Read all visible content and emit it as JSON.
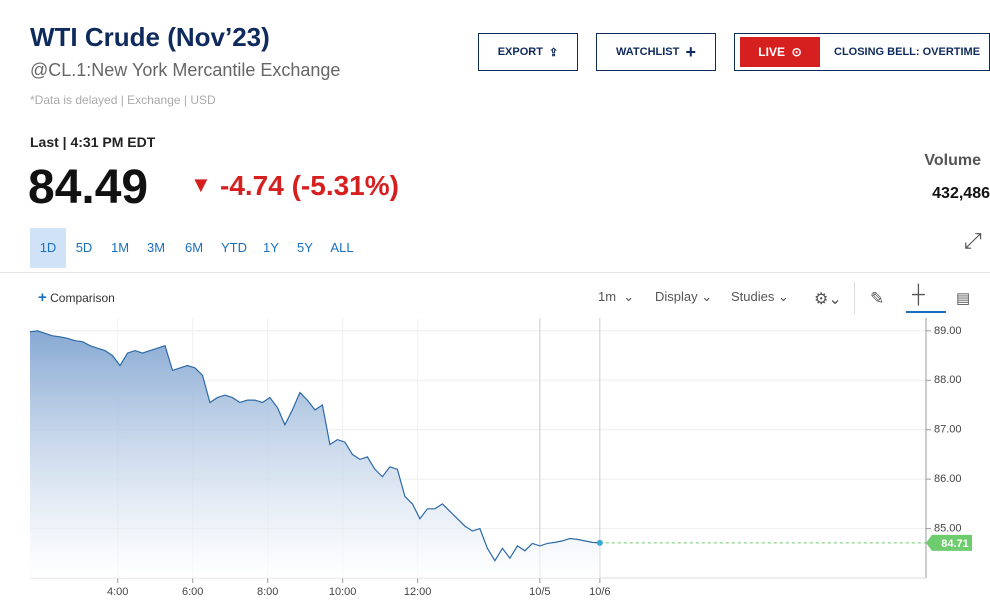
{
  "header": {
    "title": "WTI Crude (Nov’23)",
    "subtitle": "@CL.1:New York Mercantile Exchange",
    "note": "*Data is delayed | Exchange | USD"
  },
  "buttons": {
    "export": "EXPORT",
    "watchlist": "WATCHLIST",
    "live": "LIVE",
    "show": "CLOSING BELL: OVERTIME"
  },
  "quote": {
    "last_label": "Last | 4:31 PM EDT",
    "price": "84.49",
    "change": "-4.74 (-5.31%)",
    "volume_label": "Volume",
    "volume": "432,486"
  },
  "ranges": [
    "1D",
    "5D",
    "1M",
    "3M",
    "6M",
    "YTD",
    "1Y",
    "5Y",
    "ALL"
  ],
  "toolbar": {
    "comparison": "Comparison",
    "interval": "1m",
    "display": "Display",
    "studies": "Studies"
  },
  "chart_data": {
    "type": "area",
    "color": "#2d6aa6",
    "grid": true,
    "x": [
      0,
      1,
      2,
      3,
      4,
      5,
      6,
      7,
      8,
      9,
      10,
      11,
      12,
      13,
      14,
      15,
      16,
      17,
      18,
      19,
      20,
      21,
      22,
      23,
      24,
      25,
      26,
      27,
      28,
      29,
      30,
      31,
      32,
      33,
      34,
      35,
      36,
      37,
      38,
      39,
      40,
      41,
      42,
      43,
      44,
      45,
      46,
      47,
      48,
      49,
      50,
      51,
      52,
      53,
      54,
      55,
      56,
      57,
      58,
      59,
      60,
      61,
      62,
      63,
      64,
      65,
      66,
      67,
      68,
      69,
      70,
      71,
      72,
      73,
      74,
      75,
      76
    ],
    "values": [
      88.98,
      89.0,
      88.95,
      88.9,
      88.88,
      88.85,
      88.8,
      88.78,
      88.7,
      88.65,
      88.6,
      88.5,
      88.3,
      88.55,
      88.6,
      88.55,
      88.6,
      88.65,
      88.7,
      88.2,
      88.25,
      88.3,
      88.25,
      88.1,
      87.55,
      87.65,
      87.7,
      87.65,
      87.55,
      87.6,
      87.6,
      87.55,
      87.65,
      87.45,
      87.1,
      87.4,
      87.75,
      87.6,
      87.4,
      87.5,
      86.7,
      86.8,
      86.75,
      86.5,
      86.4,
      86.45,
      86.2,
      86.05,
      86.25,
      86.2,
      85.65,
      85.5,
      85.2,
      85.4,
      85.4,
      85.5,
      85.35,
      85.2,
      85.05,
      84.95,
      85.0,
      84.6,
      84.35,
      84.6,
      84.4,
      84.65,
      84.55,
      84.7,
      84.65,
      84.7,
      84.72,
      84.75,
      84.8,
      84.78,
      84.75,
      84.72,
      84.71
    ],
    "xlim": [
      0,
      119.5
    ],
    "xticks": [
      {
        "value": 11.7,
        "label": "4:00"
      },
      {
        "value": 21.7,
        "label": "6:00"
      },
      {
        "value": 31.7,
        "label": "8:00"
      },
      {
        "value": 41.7,
        "label": "10:00"
      },
      {
        "value": 51.7,
        "label": "12:00"
      },
      {
        "value": 68,
        "label": "10/5"
      },
      {
        "value": 76,
        "label": "10/6"
      }
    ],
    "ylim": [
      84.0,
      89.26
    ],
    "yticks": [
      {
        "value": 85,
        "label": "85.00"
      },
      {
        "value": 86,
        "label": "86.00"
      },
      {
        "value": 87,
        "label": "87.00"
      },
      {
        "value": 88,
        "label": "88.00"
      },
      {
        "value": 89,
        "label": "89.00"
      }
    ]
  }
}
